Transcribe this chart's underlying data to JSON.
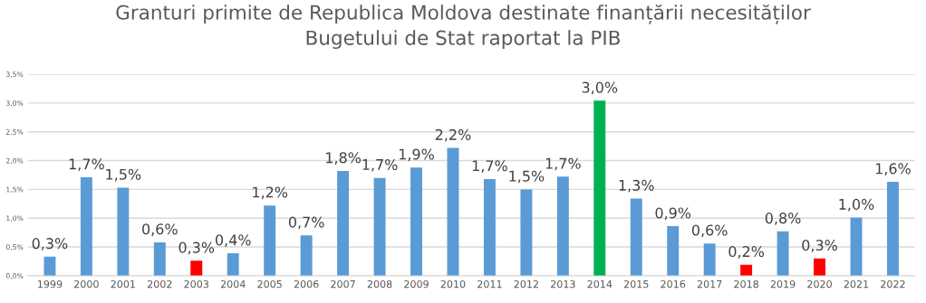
{
  "chart_data": {
    "type": "bar",
    "title": "Granturi primite de Republica Moldova destinate finanțării necesităților\nBugetului de Stat raportat la PIB",
    "categories": [
      "1999",
      "2000",
      "2001",
      "2002",
      "2003",
      "2004",
      "2005",
      "2006",
      "2007",
      "2008",
      "2009",
      "2010",
      "2011",
      "2012",
      "2013",
      "2014",
      "2015",
      "2016",
      "2017",
      "2018",
      "2019",
      "2020",
      "2021",
      "2022"
    ],
    "values": [
      0.33,
      1.71,
      1.53,
      0.58,
      0.26,
      0.39,
      1.22,
      0.7,
      1.82,
      1.7,
      1.88,
      2.22,
      1.68,
      1.5,
      1.72,
      3.04,
      1.34,
      0.86,
      0.56,
      0.19,
      0.77,
      0.3,
      1.01,
      1.63
    ],
    "colors": [
      "#5b9bd5",
      "#5b9bd5",
      "#5b9bd5",
      "#5b9bd5",
      "#ff0000",
      "#5b9bd5",
      "#5b9bd5",
      "#5b9bd5",
      "#5b9bd5",
      "#5b9bd5",
      "#5b9bd5",
      "#5b9bd5",
      "#5b9bd5",
      "#5b9bd5",
      "#5b9bd5",
      "#00b050",
      "#5b9bd5",
      "#5b9bd5",
      "#5b9bd5",
      "#ff0000",
      "#5b9bd5",
      "#ff0000",
      "#5b9bd5",
      "#5b9bd5"
    ],
    "value_labels": [
      "0,3%",
      "1,7%",
      "1,5%",
      "0,6%",
      "0,3%",
      "0,4%",
      "1,2%",
      "0,7%",
      "1,8%",
      "1,7%",
      "1,9%",
      "2,2%",
      "1,7%",
      "1,5%",
      "1,7%",
      "3,0%",
      "1,3%",
      "0,9%",
      "0,6%",
      "0,2%",
      "0,8%",
      "0,3%",
      "1,0%",
      "1,6%"
    ],
    "ylim": [
      0,
      3.5
    ],
    "yticks": [
      {
        "value": 0,
        "label": "0,0%"
      },
      {
        "value": 0.5,
        "label": "0,5%"
      },
      {
        "value": 1,
        "label": "1,0%"
      },
      {
        "value": 1.5,
        "label": "1,5%"
      },
      {
        "value": 2,
        "label": "2,0%"
      },
      {
        "value": 2.5,
        "label": "2,5%"
      },
      {
        "value": 3,
        "label": "3,0%"
      },
      {
        "value": 3.5,
        "label": "3,5%"
      }
    ],
    "grid": "y"
  }
}
